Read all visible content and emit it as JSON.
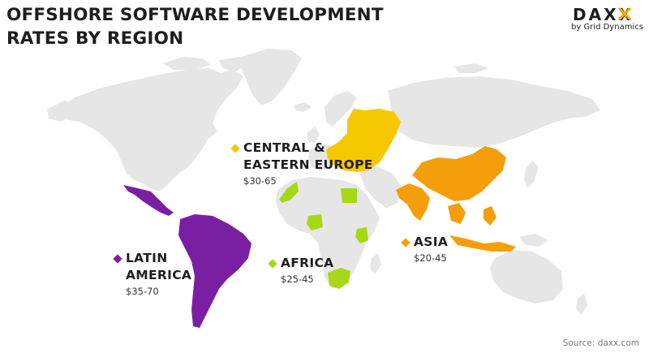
{
  "title": {
    "line1": "OFFSHORE SOFTWARE DEVELOPMENT",
    "line2": "RATES BY REGION"
  },
  "logo": {
    "text": "DAXX",
    "subtitle": "by Grid Dynamics",
    "accent_color": "#f5a800"
  },
  "colors": {
    "land": "#e6e6e6",
    "latin_america": "#7b1fa2",
    "central_eastern_europe": "#f5c800",
    "africa": "#a6d816",
    "asia": "#f59e0b"
  },
  "regions": [
    {
      "id": "cee",
      "name_line1": "CENTRAL &",
      "name_line2": "EASTERN EUROPE",
      "rate": "$30-65",
      "color": "#f5c800"
    },
    {
      "id": "latam",
      "name_line1": "LATIN",
      "name_line2": "AMERICA",
      "rate": "$35-70",
      "color": "#7b1fa2"
    },
    {
      "id": "africa",
      "name_line1": "AFRICA",
      "name_line2": "",
      "rate": "$25-45",
      "color": "#a6d816"
    },
    {
      "id": "asia",
      "name_line1": "ASIA",
      "name_line2": "",
      "rate": "$20-45",
      "color": "#f59e0b"
    }
  ],
  "source": "Source: daxx.com"
}
